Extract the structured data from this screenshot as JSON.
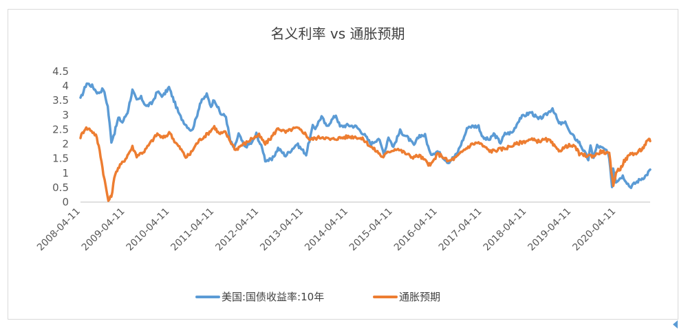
{
  "chart_data": {
    "type": "line",
    "title": "名义利率 vs 通胀预期",
    "xlabel": "",
    "ylabel": "",
    "ylim": [
      0,
      4.5
    ],
    "yticks": [
      "0",
      "0.5",
      "1",
      "1.5",
      "2",
      "2.5",
      "3",
      "3.5",
      "4",
      "4.5"
    ],
    "xticks": [
      "2008-04-11",
      "2009-04-11",
      "2010-04-11",
      "2011-04-11",
      "2012-04-11",
      "2013-04-11",
      "2014-04-11",
      "2015-04-11",
      "2016-04-11",
      "2017-04-11",
      "2018-04-11",
      "2019-04-11",
      "2020-04-11"
    ],
    "xrange": [
      "2008-04-11",
      "2021-01-15"
    ],
    "legend_position": "bottom",
    "grid": false,
    "series": [
      {
        "name": "美国:国债收益率:10年",
        "color": "#5b9bd5",
        "points": [
          [
            "2008-04-11",
            3.55
          ],
          [
            "2008-06-01",
            4.1
          ],
          [
            "2008-07-15",
            4.0
          ],
          [
            "2008-09-01",
            3.75
          ],
          [
            "2008-10-15",
            3.9
          ],
          [
            "2008-11-20",
            3.3
          ],
          [
            "2008-12-20",
            2.1
          ],
          [
            "2009-01-15",
            2.4
          ],
          [
            "2009-02-15",
            2.9
          ],
          [
            "2009-03-20",
            2.75
          ],
          [
            "2009-05-01",
            3.1
          ],
          [
            "2009-06-10",
            3.85
          ],
          [
            "2009-07-15",
            3.5
          ],
          [
            "2009-08-20",
            3.6
          ],
          [
            "2009-10-01",
            3.3
          ],
          [
            "2009-11-15",
            3.4
          ],
          [
            "2009-12-31",
            3.8
          ],
          [
            "2010-02-15",
            3.65
          ],
          [
            "2010-04-05",
            3.95
          ],
          [
            "2010-05-15",
            3.5
          ],
          [
            "2010-06-30",
            3.0
          ],
          [
            "2010-08-15",
            2.7
          ],
          [
            "2010-10-08",
            2.45
          ],
          [
            "2010-11-15",
            2.9
          ],
          [
            "2010-12-15",
            3.4
          ],
          [
            "2011-02-08",
            3.7
          ],
          [
            "2011-03-15",
            3.3
          ],
          [
            "2011-04-11",
            3.55
          ],
          [
            "2011-06-01",
            3.05
          ],
          [
            "2011-07-15",
            2.95
          ],
          [
            "2011-08-20",
            2.1
          ],
          [
            "2011-09-22",
            1.85
          ],
          [
            "2011-10-27",
            2.35
          ],
          [
            "2011-12-15",
            1.9
          ],
          [
            "2012-02-15",
            2.05
          ],
          [
            "2012-03-20",
            2.35
          ],
          [
            "2012-05-15",
            1.75
          ],
          [
            "2012-06-01",
            1.45
          ],
          [
            "2012-07-25",
            1.45
          ],
          [
            "2012-09-14",
            1.85
          ],
          [
            "2012-11-15",
            1.6
          ],
          [
            "2012-12-31",
            1.8
          ],
          [
            "2013-02-15",
            2.0
          ],
          [
            "2013-05-02",
            1.65
          ],
          [
            "2013-06-25",
            2.6
          ],
          [
            "2013-07-15",
            2.55
          ],
          [
            "2013-09-05",
            2.95
          ],
          [
            "2013-10-15",
            2.6
          ],
          [
            "2013-12-31",
            3.0
          ],
          [
            "2014-02-03",
            2.6
          ],
          [
            "2014-04-11",
            2.65
          ],
          [
            "2014-06-15",
            2.6
          ],
          [
            "2014-08-15",
            2.35
          ],
          [
            "2014-10-15",
            2.0
          ],
          [
            "2014-12-15",
            2.2
          ],
          [
            "2015-01-30",
            1.65
          ],
          [
            "2015-03-06",
            2.25
          ],
          [
            "2015-04-15",
            1.9
          ],
          [
            "2015-06-10",
            2.45
          ],
          [
            "2015-08-15",
            2.2
          ],
          [
            "2015-10-01",
            1.95
          ],
          [
            "2015-11-15",
            2.3
          ],
          [
            "2015-12-31",
            2.3
          ],
          [
            "2016-02-11",
            1.65
          ],
          [
            "2016-04-11",
            1.75
          ],
          [
            "2016-07-08",
            1.37
          ],
          [
            "2016-09-15",
            1.65
          ],
          [
            "2016-11-15",
            2.25
          ],
          [
            "2016-12-15",
            2.6
          ],
          [
            "2017-03-13",
            2.62
          ],
          [
            "2017-04-18",
            2.2
          ],
          [
            "2017-06-15",
            2.15
          ],
          [
            "2017-07-15",
            2.35
          ],
          [
            "2017-09-08",
            2.05
          ],
          [
            "2017-10-15",
            2.35
          ],
          [
            "2017-12-15",
            2.4
          ],
          [
            "2018-02-15",
            2.9
          ],
          [
            "2018-05-17",
            3.1
          ],
          [
            "2018-07-15",
            2.85
          ],
          [
            "2018-09-15",
            3.0
          ],
          [
            "2018-11-08",
            3.24
          ],
          [
            "2018-12-31",
            2.7
          ],
          [
            "2019-03-01",
            2.72
          ],
          [
            "2019-03-28",
            2.4
          ],
          [
            "2019-06-15",
            2.05
          ],
          [
            "2019-08-28",
            1.47
          ],
          [
            "2019-09-15",
            1.9
          ],
          [
            "2019-10-10",
            1.55
          ],
          [
            "2019-11-08",
            1.94
          ],
          [
            "2020-01-15",
            1.8
          ],
          [
            "2020-02-15",
            1.55
          ],
          [
            "2020-03-09",
            0.54
          ],
          [
            "2020-03-18",
            1.18
          ],
          [
            "2020-04-11",
            0.72
          ],
          [
            "2020-06-05",
            0.9
          ],
          [
            "2020-08-04",
            0.52
          ],
          [
            "2020-10-15",
            0.75
          ],
          [
            "2020-12-15",
            0.92
          ],
          [
            "2021-01-15",
            1.12
          ]
        ]
      },
      {
        "name": "通胀预期",
        "color": "#ed7d31",
        "points": [
          [
            "2008-04-11",
            2.25
          ],
          [
            "2008-05-20",
            2.55
          ],
          [
            "2008-07-01",
            2.5
          ],
          [
            "2008-08-15",
            2.3
          ],
          [
            "2008-09-15",
            1.8
          ],
          [
            "2008-10-15",
            1.0
          ],
          [
            "2008-11-05",
            0.5
          ],
          [
            "2008-11-25",
            0.05
          ],
          [
            "2008-12-20",
            0.2
          ],
          [
            "2009-01-20",
            1.0
          ],
          [
            "2009-03-01",
            1.25
          ],
          [
            "2009-04-15",
            1.5
          ],
          [
            "2009-06-10",
            1.9
          ],
          [
            "2009-07-15",
            1.6
          ],
          [
            "2009-09-15",
            1.75
          ],
          [
            "2009-11-15",
            2.1
          ],
          [
            "2009-12-31",
            2.35
          ],
          [
            "2010-02-15",
            2.2
          ],
          [
            "2010-04-15",
            2.4
          ],
          [
            "2010-05-20",
            2.1
          ],
          [
            "2010-07-15",
            1.8
          ],
          [
            "2010-08-20",
            1.55
          ],
          [
            "2010-09-25",
            1.65
          ],
          [
            "2010-11-15",
            2.0
          ],
          [
            "2010-12-15",
            2.15
          ],
          [
            "2011-02-15",
            2.35
          ],
          [
            "2011-04-11",
            2.6
          ],
          [
            "2011-05-20",
            2.35
          ],
          [
            "2011-07-10",
            2.4
          ],
          [
            "2011-08-20",
            2.1
          ],
          [
            "2011-10-03",
            1.8
          ],
          [
            "2011-11-15",
            1.95
          ],
          [
            "2011-12-31",
            2.05
          ],
          [
            "2012-02-15",
            2.2
          ],
          [
            "2012-04-11",
            2.3
          ],
          [
            "2012-06-01",
            2.0
          ],
          [
            "2012-07-15",
            2.2
          ],
          [
            "2012-09-15",
            2.55
          ],
          [
            "2012-11-15",
            2.4
          ],
          [
            "2012-12-31",
            2.5
          ],
          [
            "2013-02-15",
            2.55
          ],
          [
            "2013-04-15",
            2.4
          ],
          [
            "2013-06-01",
            2.15
          ],
          [
            "2013-07-15",
            2.2
          ],
          [
            "2013-09-15",
            2.25
          ],
          [
            "2013-11-15",
            2.15
          ],
          [
            "2014-01-15",
            2.2
          ],
          [
            "2014-04-11",
            2.25
          ],
          [
            "2014-06-15",
            2.25
          ],
          [
            "2014-08-15",
            2.15
          ],
          [
            "2014-10-15",
            1.9
          ],
          [
            "2014-12-15",
            1.7
          ],
          [
            "2015-01-15",
            1.55
          ],
          [
            "2015-03-15",
            1.75
          ],
          [
            "2015-05-15",
            1.85
          ],
          [
            "2015-07-15",
            1.7
          ],
          [
            "2015-09-15",
            1.55
          ],
          [
            "2015-11-15",
            1.6
          ],
          [
            "2016-01-20",
            1.35
          ],
          [
            "2016-02-11",
            1.25
          ],
          [
            "2016-04-11",
            1.65
          ],
          [
            "2016-05-15",
            1.6
          ],
          [
            "2016-07-08",
            1.4
          ],
          [
            "2016-09-15",
            1.55
          ],
          [
            "2016-11-15",
            1.8
          ],
          [
            "2017-01-20",
            2.0
          ],
          [
            "2017-03-13",
            2.05
          ],
          [
            "2017-05-15",
            1.85
          ],
          [
            "2017-06-20",
            1.75
          ],
          [
            "2017-08-15",
            1.8
          ],
          [
            "2017-10-15",
            1.85
          ],
          [
            "2017-12-15",
            1.95
          ],
          [
            "2018-02-15",
            2.05
          ],
          [
            "2018-05-15",
            2.15
          ],
          [
            "2018-07-15",
            2.1
          ],
          [
            "2018-09-15",
            2.15
          ],
          [
            "2018-10-20",
            2.1
          ],
          [
            "2018-12-15",
            1.8
          ],
          [
            "2019-01-15",
            1.8
          ],
          [
            "2019-03-15",
            1.95
          ],
          [
            "2019-05-15",
            1.9
          ],
          [
            "2019-06-15",
            1.65
          ],
          [
            "2019-08-15",
            1.6
          ],
          [
            "2019-10-15",
            1.6
          ],
          [
            "2019-12-15",
            1.75
          ],
          [
            "2020-01-15",
            1.7
          ],
          [
            "2020-02-15",
            1.65
          ],
          [
            "2020-03-19",
            0.55
          ],
          [
            "2020-04-11",
            1.05
          ],
          [
            "2020-05-15",
            1.15
          ],
          [
            "2020-06-15",
            1.4
          ],
          [
            "2020-07-15",
            1.55
          ],
          [
            "2020-08-15",
            1.7
          ],
          [
            "2020-09-15",
            1.65
          ],
          [
            "2020-10-15",
            1.75
          ],
          [
            "2020-11-15",
            1.85
          ],
          [
            "2020-12-15",
            2.05
          ],
          [
            "2021-01-05",
            2.15
          ],
          [
            "2021-01-15",
            2.1
          ]
        ]
      }
    ]
  }
}
